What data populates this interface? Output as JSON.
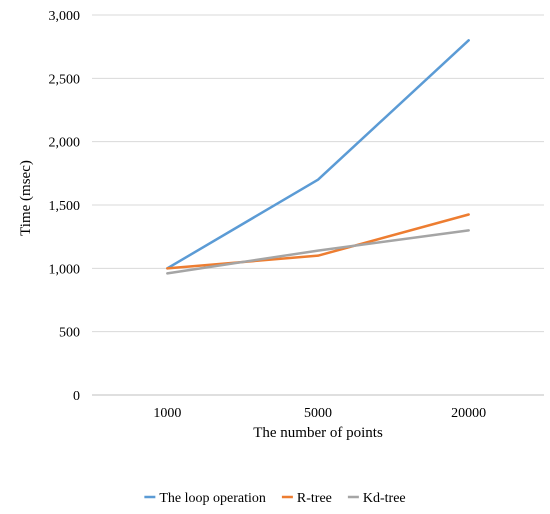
{
  "chart_data": {
    "type": "line",
    "title": "",
    "xlabel": "The number of points",
    "ylabel": "Time (msec)",
    "categories": [
      "1000",
      "5000",
      "20000"
    ],
    "y_ticks": [
      "0",
      "500",
      "1,000",
      "1,500",
      "2,000",
      "2,500",
      "3,000"
    ],
    "ylim": [
      0,
      3000
    ],
    "grid": true,
    "legend_position": "bottom",
    "series": [
      {
        "name": "The loop operation",
        "values": [
          1000,
          1700,
          2800
        ],
        "color": "#5b9bd5"
      },
      {
        "name": "R-tree",
        "values": [
          1000,
          1100,
          1425
        ],
        "color": "#ed7d31"
      },
      {
        "name": "Kd-tree",
        "values": [
          960,
          1140,
          1300
        ],
        "color": "#a5a5a5"
      }
    ]
  }
}
